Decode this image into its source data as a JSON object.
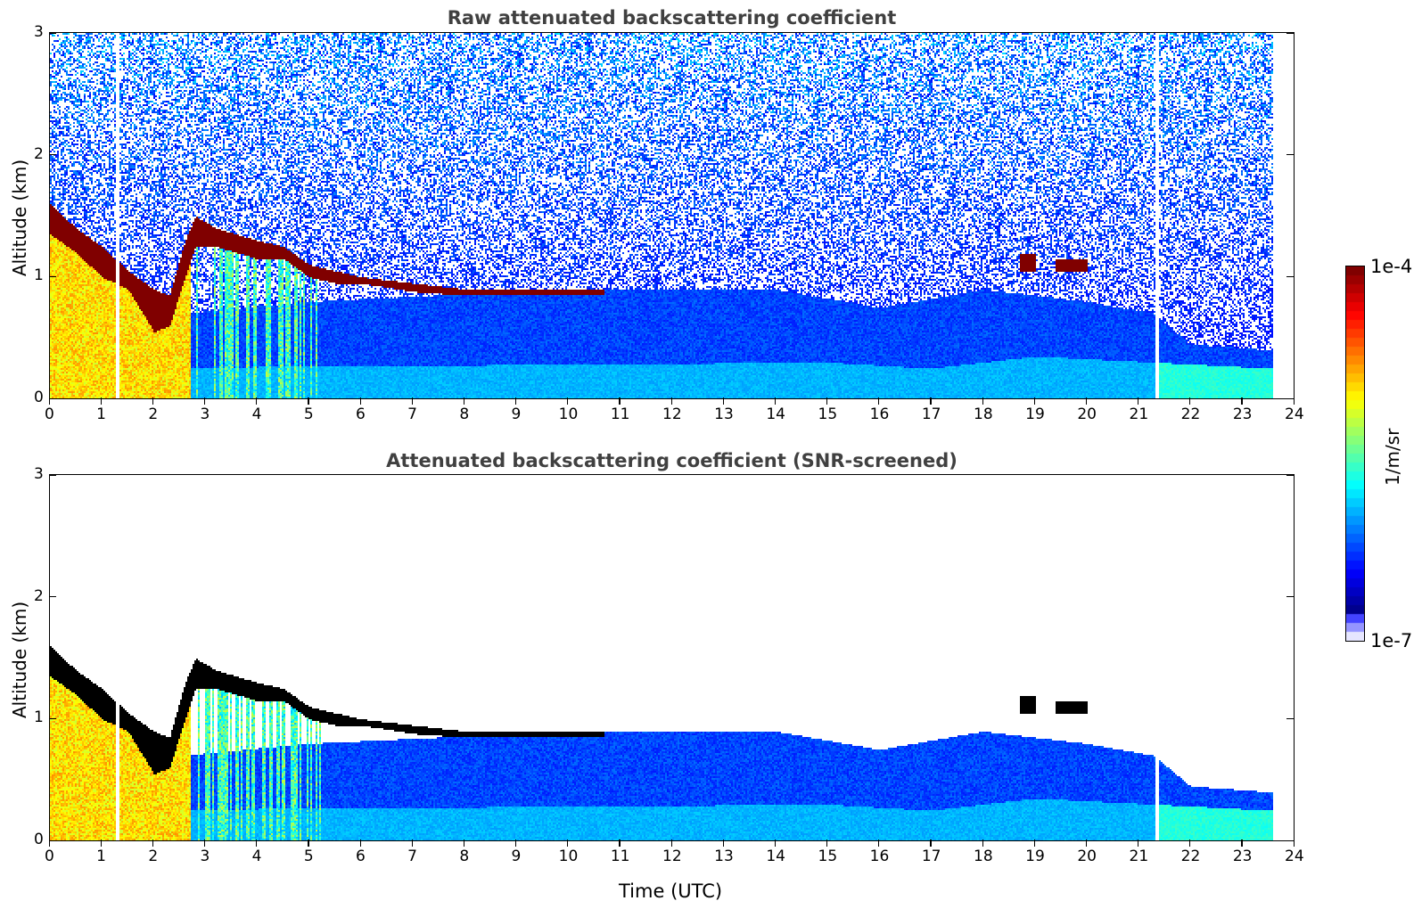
{
  "chart_data": [
    {
      "type": "heatmap",
      "id": "raw",
      "title": "Raw attenuated backscattering coefficient",
      "xlabel": "",
      "ylabel": "Altitude (km)",
      "xlim": [
        0,
        24
      ],
      "ylim": [
        0,
        3
      ],
      "xticks": [
        "0",
        "1",
        "2",
        "3",
        "4",
        "5",
        "6",
        "7",
        "8",
        "9",
        "10",
        "11",
        "12",
        "13",
        "14",
        "15",
        "16",
        "17",
        "18",
        "19",
        "20",
        "21",
        "22",
        "23",
        "24"
      ],
      "yticks": [
        "0",
        "1",
        "2",
        "3"
      ],
      "data_end_time": 23.6,
      "missing_columns_time": [
        1.3,
        21.35
      ],
      "features": {
        "cloud_top_km": [
          [
            0,
            1.6
          ],
          [
            0.5,
            1.4
          ],
          [
            1,
            1.25
          ],
          [
            1.5,
            1.05
          ],
          [
            2,
            0.9
          ],
          [
            2.3,
            0.85
          ],
          [
            2.6,
            1.3
          ],
          [
            2.8,
            1.5
          ],
          [
            3.2,
            1.4
          ],
          [
            4,
            1.3
          ],
          [
            4.5,
            1.25
          ],
          [
            5,
            1.1
          ],
          [
            5.5,
            1.05
          ],
          [
            6,
            1.0
          ],
          [
            7,
            0.95
          ],
          [
            8,
            0.9
          ],
          [
            9,
            0.9
          ],
          [
            10,
            0.9
          ],
          [
            10.6,
            0.9
          ]
        ],
        "cloud_base_km": [
          [
            0,
            1.35
          ],
          [
            0.5,
            1.2
          ],
          [
            1,
            1.0
          ],
          [
            1.5,
            0.9
          ],
          [
            2,
            0.55
          ],
          [
            2.3,
            0.6
          ],
          [
            2.6,
            1.0
          ],
          [
            2.8,
            1.25
          ],
          [
            3.2,
            1.25
          ],
          [
            4,
            1.15
          ],
          [
            4.5,
            1.15
          ],
          [
            5,
            1.0
          ],
          [
            5.5,
            0.95
          ],
          [
            6,
            0.95
          ],
          [
            7,
            0.88
          ],
          [
            8,
            0.85
          ],
          [
            9,
            0.85
          ],
          [
            10,
            0.85
          ],
          [
            10.6,
            0.85
          ]
        ],
        "late_cloud_segments": [
          [
            18.7,
            19.0,
            1.05,
            1.2
          ],
          [
            19.4,
            20.0,
            1.05,
            1.15
          ]
        ],
        "boundary_layer_top_km": [
          [
            0,
            0.6
          ],
          [
            5,
            0.8
          ],
          [
            10,
            0.9
          ],
          [
            14,
            0.9
          ],
          [
            16,
            0.75
          ],
          [
            18,
            0.9
          ],
          [
            20,
            0.8
          ],
          [
            21.3,
            0.7
          ],
          [
            22,
            0.45
          ],
          [
            23.6,
            0.4
          ]
        ],
        "surface_layer_top_km": [
          [
            0,
            0.25
          ],
          [
            15,
            0.3
          ],
          [
            17,
            0.25
          ],
          [
            19,
            0.35
          ],
          [
            21.3,
            0.3
          ],
          [
            23.6,
            0.25
          ]
        ]
      }
    },
    {
      "type": "heatmap",
      "id": "screened",
      "title": "Attenuated backscattering coefficient (SNR-screened)",
      "xlabel": "Time (UTC)",
      "ylabel": "Altitude (km)",
      "xlim": [
        0,
        24
      ],
      "ylim": [
        0,
        3
      ],
      "xticks": [
        "0",
        "1",
        "2",
        "3",
        "4",
        "5",
        "6",
        "7",
        "8",
        "9",
        "10",
        "11",
        "12",
        "13",
        "14",
        "15",
        "16",
        "17",
        "18",
        "19",
        "20",
        "21",
        "22",
        "23",
        "24"
      ],
      "yticks": [
        "0",
        "1",
        "2",
        "3"
      ],
      "data_end_time": 23.6,
      "missing_columns_time": [
        1.3,
        21.35
      ],
      "saturated_color": "#000000"
    }
  ],
  "colorbar": {
    "min_label": "1e-7",
    "max_label": "1e-4",
    "unit": "1/m/sr",
    "scale": "log",
    "range": [
      1e-07,
      0.0001
    ],
    "colormap": "jet"
  }
}
